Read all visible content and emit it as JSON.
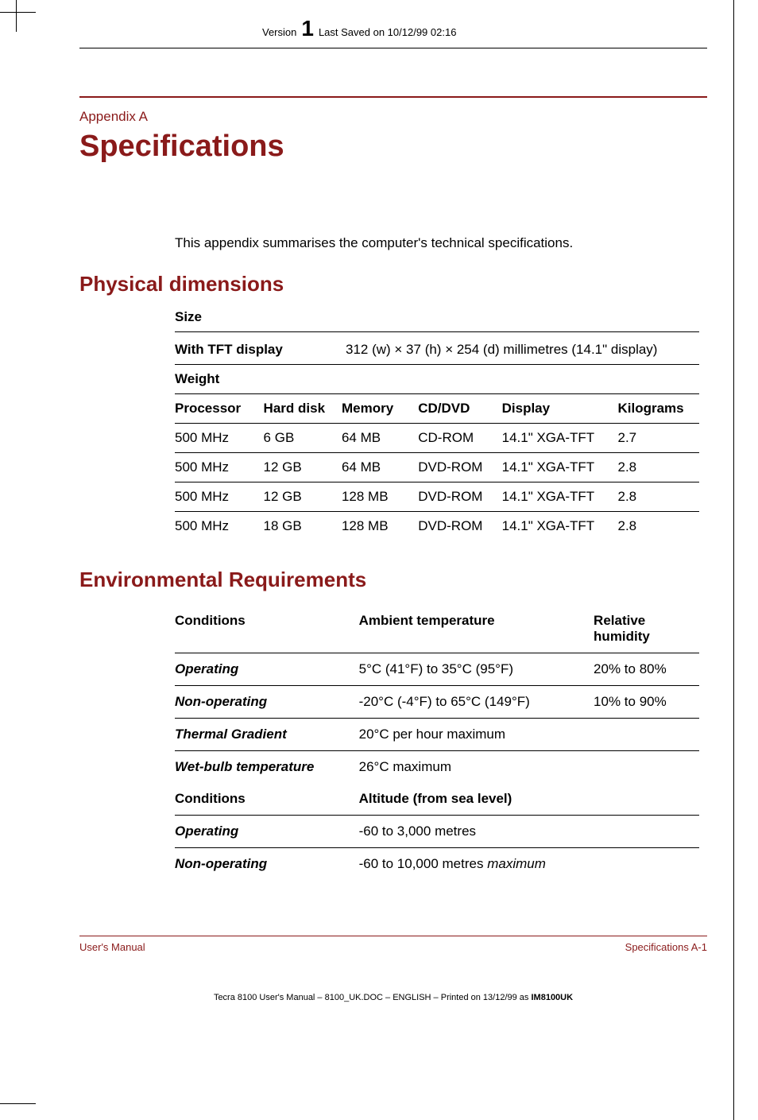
{
  "header": {
    "version_prefix": "Version",
    "version_number": "1",
    "last_saved": "Last Saved on 10/12/99 02:16"
  },
  "appendix_label": "Appendix A",
  "title": "Specifications",
  "intro": "This appendix summarises the computer's technical specifications.",
  "section_physical": "Physical dimensions",
  "size_heading": "Size",
  "size_row": {
    "label": "With TFT display",
    "value": "312 (w) × 37 (h) × 254 (d) millimetres (14.1\" display)"
  },
  "weight_heading": "Weight",
  "weight_columns": {
    "processor": "Processor",
    "hard_disk": "Hard disk",
    "memory": "Memory",
    "cddvd": "CD/DVD",
    "display": "Display",
    "kilograms": "Kilograms"
  },
  "weight_rows": [
    {
      "processor": "500 MHz",
      "hard_disk": "6 GB",
      "memory": "64 MB",
      "cddvd": "CD-ROM",
      "display": "14.1\" XGA-TFT",
      "kilograms": "2.7"
    },
    {
      "processor": "500 MHz",
      "hard_disk": "12 GB",
      "memory": "64 MB",
      "cddvd": "DVD-ROM",
      "display": "14.1\" XGA-TFT",
      "kilograms": "2.8"
    },
    {
      "processor": "500 MHz",
      "hard_disk": "12 GB",
      "memory": "128 MB",
      "cddvd": "DVD-ROM",
      "display": "14.1\" XGA-TFT",
      "kilograms": "2.8"
    },
    {
      "processor": "500 MHz",
      "hard_disk": "18 GB",
      "memory": "128 MB",
      "cddvd": "DVD-ROM",
      "display": "14.1\" XGA-TFT",
      "kilograms": "2.8"
    }
  ],
  "section_env": "Environmental Requirements",
  "env_columns": {
    "conditions": "Conditions",
    "ambient": "Ambient temperature",
    "humidity": "Relative humidity"
  },
  "env_rows": [
    {
      "cond": "Operating",
      "amb": "5°C (41°F) to 35°C (95°F)",
      "rh": "20% to 80%"
    },
    {
      "cond": "Non-operating",
      "amb": "-20°C (-4°F) to 65°C (149°F)",
      "rh": "10% to 90%"
    },
    {
      "cond": "Thermal Gradient",
      "amb": "20°C per hour maximum",
      "rh": ""
    },
    {
      "cond": "Wet-bulb temperature",
      "amb": "26°C maximum",
      "rh": ""
    }
  ],
  "alt_columns": {
    "conditions": "Conditions",
    "altitude": "Altitude (from sea level)"
  },
  "alt_rows": [
    {
      "cond": "Operating",
      "val": "-60 to 3,000 metres",
      "suffix": ""
    },
    {
      "cond": "Non-operating",
      "val": "-60 to 10,000 metres ",
      "suffix": "maximum"
    }
  ],
  "footer": {
    "left": "User's Manual",
    "right": "Specifications  A-1"
  },
  "bottom_print": {
    "text": "Tecra 8100 User's Manual  – 8100_UK.DOC – ENGLISH – Printed on 13/12/99 as ",
    "bold": "IM8100UK"
  },
  "colors": {
    "accent": "#8a1a1a",
    "text": "#000000",
    "background": "#ffffff"
  }
}
